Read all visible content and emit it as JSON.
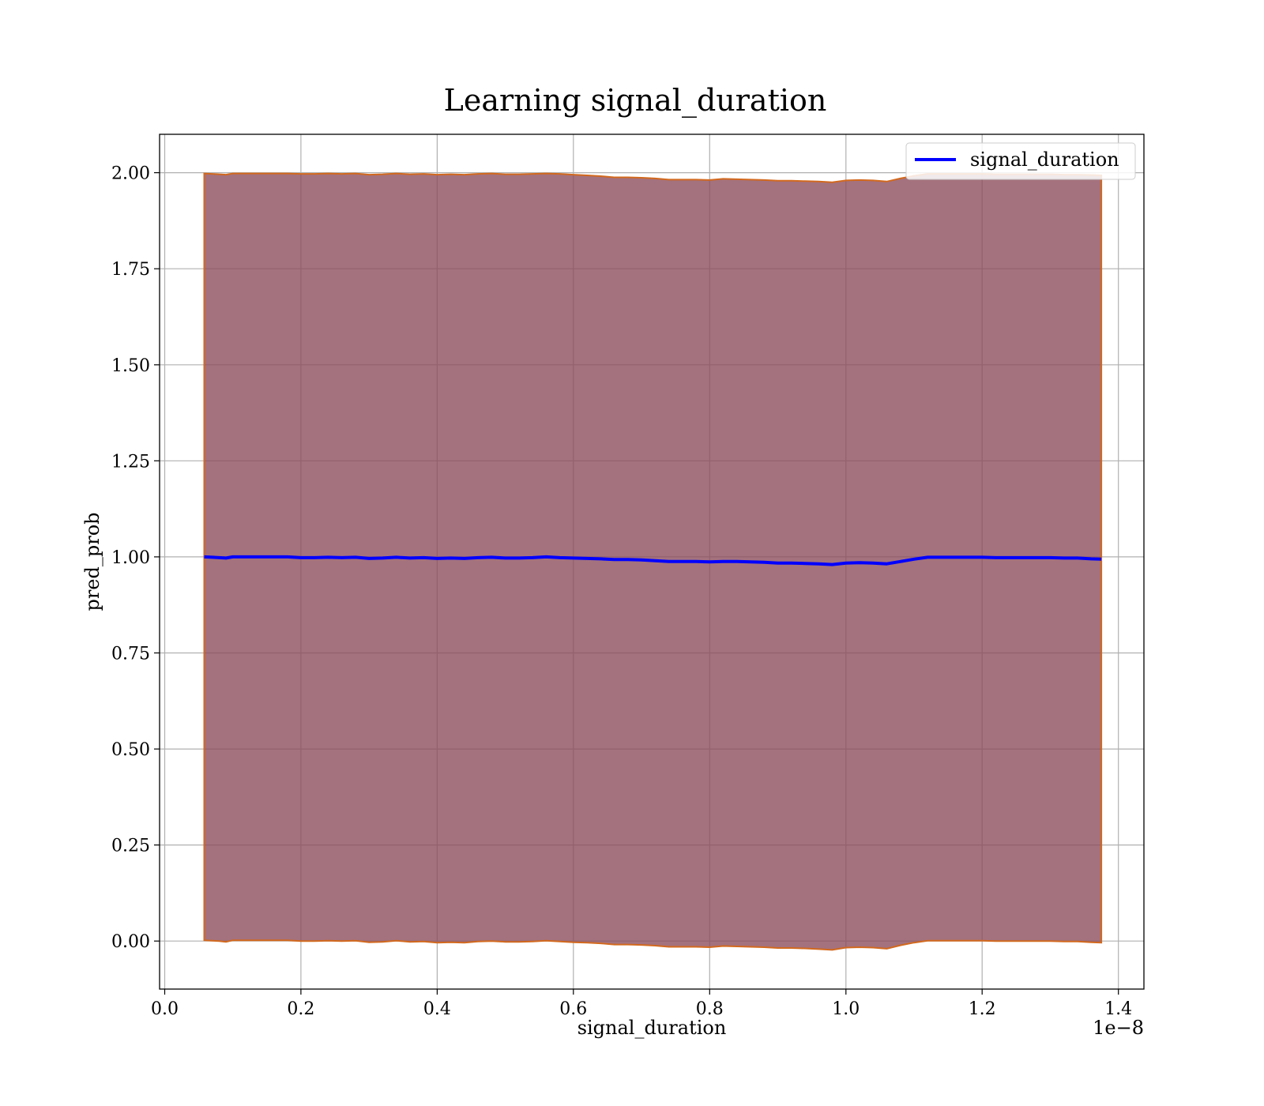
{
  "chart_data": {
    "type": "line",
    "title": "Learning signal_duration",
    "xlabel": "signal_duration",
    "ylabel": "pred_prob",
    "x_offset_label": "1e−8",
    "xlim": [
      -0.0075,
      1.4375
    ],
    "ylim": [
      -0.125,
      2.1
    ],
    "grid": true,
    "legend_position": "upper right",
    "x_ticks": [
      0.0,
      0.2,
      0.4,
      0.6,
      0.8,
      1.0,
      1.2,
      1.4
    ],
    "x_tick_labels": [
      "0.0",
      "0.2",
      "0.4",
      "0.6",
      "0.8",
      "1.0",
      "1.2",
      "1.4"
    ],
    "y_ticks": [
      0.0,
      0.25,
      0.5,
      0.75,
      1.0,
      1.25,
      1.5,
      1.75,
      2.0
    ],
    "y_tick_labels": [
      "0.00",
      "0.25",
      "0.50",
      "0.75",
      "1.00",
      "1.25",
      "1.50",
      "1.75",
      "2.00"
    ],
    "colors": {
      "line": "#0000ff",
      "band_fill": "#8b4a5a",
      "band_edge": "#d2691e",
      "grid": "#b0b0b0",
      "axes": "#000000"
    },
    "series": [
      {
        "name": "signal_duration",
        "x": [
          0.058,
          0.07,
          0.08,
          0.09,
          0.1,
          0.12,
          0.15,
          0.18,
          0.2,
          0.22,
          0.24,
          0.26,
          0.28,
          0.3,
          0.32,
          0.34,
          0.36,
          0.38,
          0.4,
          0.42,
          0.44,
          0.46,
          0.48,
          0.5,
          0.52,
          0.54,
          0.56,
          0.58,
          0.6,
          0.62,
          0.64,
          0.66,
          0.68,
          0.7,
          0.72,
          0.74,
          0.76,
          0.78,
          0.8,
          0.82,
          0.84,
          0.86,
          0.88,
          0.9,
          0.92,
          0.94,
          0.96,
          0.98,
          1.0,
          1.02,
          1.04,
          1.06,
          1.08,
          1.1,
          1.12,
          1.14,
          1.16,
          1.18,
          1.2,
          1.22,
          1.24,
          1.26,
          1.28,
          1.3,
          1.32,
          1.34,
          1.36,
          1.375
        ],
        "values": [
          1.0,
          0.999,
          0.998,
          0.997,
          1.0,
          1.0,
          1.0,
          1.0,
          0.998,
          0.998,
          0.999,
          0.998,
          0.999,
          0.996,
          0.997,
          0.999,
          0.997,
          0.998,
          0.996,
          0.997,
          0.996,
          0.998,
          0.999,
          0.997,
          0.997,
          0.998,
          1.0,
          0.998,
          0.997,
          0.996,
          0.995,
          0.993,
          0.993,
          0.992,
          0.99,
          0.988,
          0.988,
          0.988,
          0.987,
          0.988,
          0.988,
          0.987,
          0.986,
          0.984,
          0.984,
          0.983,
          0.982,
          0.98,
          0.984,
          0.985,
          0.984,
          0.982,
          0.988,
          0.994,
          0.999,
          0.999,
          0.999,
          0.999,
          0.999,
          0.998,
          0.998,
          0.998,
          0.998,
          0.998,
          0.997,
          0.997,
          0.995,
          0.994
        ],
        "band_upper": [
          1.998,
          1.997,
          1.996,
          1.995,
          1.998,
          1.998,
          1.998,
          1.998,
          1.997,
          1.997,
          1.998,
          1.997,
          1.998,
          1.995,
          1.996,
          1.998,
          1.996,
          1.997,
          1.995,
          1.996,
          1.995,
          1.997,
          1.998,
          1.996,
          1.996,
          1.997,
          1.998,
          1.997,
          1.995,
          1.993,
          1.991,
          1.988,
          1.988,
          1.987,
          1.985,
          1.982,
          1.982,
          1.982,
          1.981,
          1.984,
          1.983,
          1.982,
          1.981,
          1.979,
          1.979,
          1.978,
          1.977,
          1.975,
          1.98,
          1.981,
          1.98,
          1.977,
          1.985,
          1.992,
          1.997,
          1.997,
          1.997,
          1.997,
          1.997,
          1.996,
          1.996,
          1.996,
          1.996,
          1.996,
          1.995,
          1.995,
          1.994,
          1.993
        ],
        "band_lower": [
          0.002,
          0.001,
          0.0,
          -0.002,
          0.002,
          0.002,
          0.002,
          0.002,
          0.0,
          0.0,
          0.001,
          0.0,
          0.001,
          -0.003,
          -0.002,
          0.001,
          -0.002,
          -0.001,
          -0.004,
          -0.003,
          -0.004,
          -0.001,
          0.0,
          -0.002,
          -0.002,
          -0.001,
          0.001,
          -0.001,
          -0.003,
          -0.004,
          -0.006,
          -0.009,
          -0.009,
          -0.01,
          -0.012,
          -0.015,
          -0.015,
          -0.015,
          -0.016,
          -0.013,
          -0.014,
          -0.015,
          -0.016,
          -0.018,
          -0.018,
          -0.019,
          -0.021,
          -0.023,
          -0.017,
          -0.016,
          -0.017,
          -0.02,
          -0.011,
          -0.004,
          0.001,
          0.001,
          0.001,
          0.001,
          0.001,
          0.0,
          0.0,
          0.0,
          0.0,
          0.0,
          -0.001,
          -0.001,
          -0.003,
          -0.004
        ]
      }
    ]
  }
}
